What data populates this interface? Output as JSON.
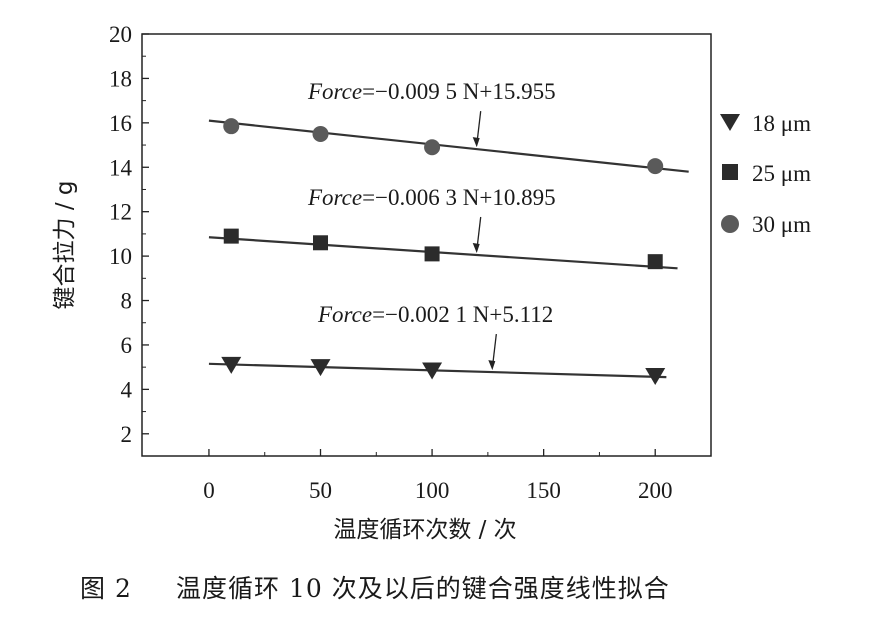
{
  "chart_data": {
    "type": "scatter",
    "title": "",
    "xlabel": "温度循环次数 / 次",
    "ylabel": "键合拉力 / g",
    "xlim": [
      -30,
      225
    ],
    "ylim": [
      1,
      20
    ],
    "xticks": [
      0,
      50,
      100,
      150,
      200
    ],
    "yticks": [
      2,
      4,
      6,
      8,
      10,
      12,
      14,
      16,
      18,
      20
    ],
    "grid": false,
    "legend_position": "right",
    "series": [
      {
        "name": "18 μm",
        "marker": "triangle-down",
        "x": [
          10,
          50,
          100,
          200
        ],
        "y": [
          5.1,
          5.0,
          4.85,
          4.6
        ],
        "fit": {
          "label": "Force=−0.002 1 N+5.112",
          "x": [
            0,
            205
          ],
          "y": [
            5.15,
            4.55
          ]
        }
      },
      {
        "name": "25 μm",
        "marker": "square",
        "x": [
          10,
          50,
          100,
          200
        ],
        "y": [
          10.9,
          10.6,
          10.1,
          9.75
        ],
        "fit": {
          "label": "Force=−0.006 3 N+10.895",
          "x": [
            0,
            210
          ],
          "y": [
            10.85,
            9.45
          ]
        }
      },
      {
        "name": "30 μm",
        "marker": "circle",
        "x": [
          10,
          50,
          100,
          200
        ],
        "y": [
          15.85,
          15.5,
          14.9,
          14.05
        ],
        "fit": {
          "label": "Force=−0.009 5 N+15.955",
          "x": [
            0,
            215
          ],
          "y": [
            16.1,
            13.8
          ]
        }
      }
    ],
    "annotations": [
      {
        "text": "Force=−0.009 5 N+15.955",
        "italic_part": "Force",
        "rest": "=−0.009 5 N+15.955"
      },
      {
        "text": "Force=−0.006 3 N+10.895",
        "italic_part": "Force",
        "rest": "=−0.006 3 N+10.895"
      },
      {
        "text": "Force=−0.002 1 N+5.112",
        "italic_part": "Force",
        "rest": "=−0.002 1 N+5.112"
      }
    ]
  },
  "caption": {
    "label": "图 2",
    "text": "温度循环 10 次及以后的键合强度线性拟合"
  },
  "colors": {
    "marker": "#2b2b2b",
    "circle_marker": "#5a5a5a",
    "line": "#333333",
    "axis": "#222222"
  }
}
